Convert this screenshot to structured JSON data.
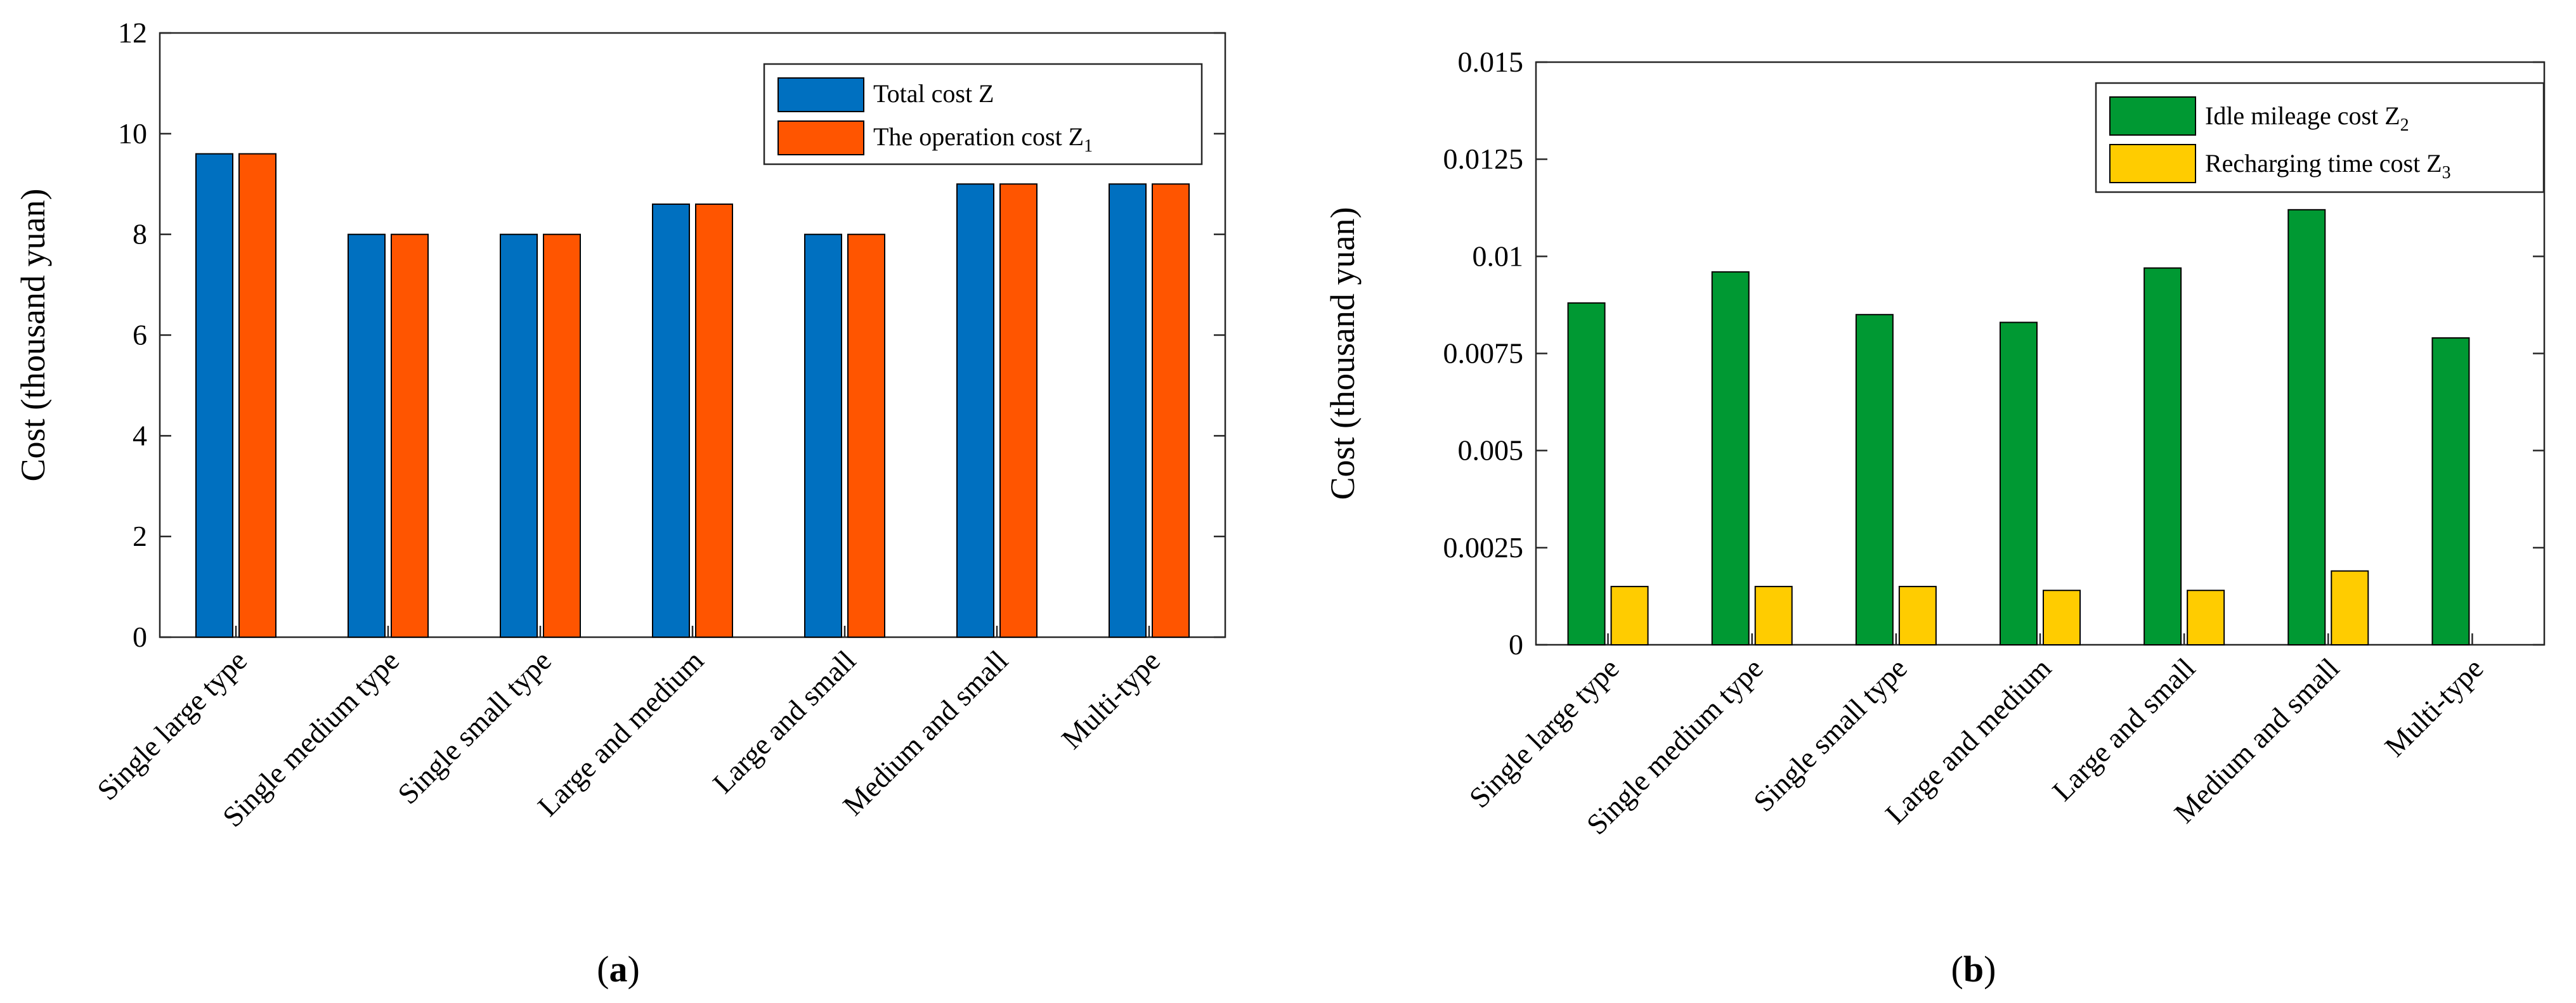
{
  "colors": {
    "blue": "#0070C0",
    "orange": "#FF5500",
    "green": "#009933",
    "yellow": "#FFCC00"
  },
  "chart_data": [
    {
      "type": "bar",
      "panel_label": "(a)",
      "panel_letter": "a",
      "categories": [
        "Single large type",
        "Single medium type",
        "Single small type",
        "Large and medium",
        "Large and small",
        "Medium and small",
        "Multi-type"
      ],
      "series": [
        {
          "name": "Total cost Z",
          "name_text": "Total cost Z",
          "name_sub": "",
          "color": "#0070C0",
          "values": [
            9.6,
            8.0,
            8.0,
            8.6,
            8.0,
            9.0,
            9.0
          ]
        },
        {
          "name": "The operation cost Z1",
          "name_text": "The operation cost  Z",
          "name_sub": "1",
          "color": "#FF5500",
          "values": [
            9.6,
            8.0,
            8.0,
            8.6,
            8.0,
            9.0,
            9.0
          ]
        }
      ],
      "xlabel": "",
      "ylabel": "Cost (thousand yuan)",
      "ylim": [
        0,
        12
      ],
      "yticks": [
        0,
        2,
        4,
        6,
        8,
        10,
        12
      ],
      "ytick_labels": [
        "0",
        "2",
        "4",
        "6",
        "8",
        "10",
        "12"
      ],
      "legend_position": "top-right",
      "grid": false
    },
    {
      "type": "bar",
      "panel_label": "(b)",
      "panel_letter": "b",
      "categories": [
        "Single large type",
        "Single medium type",
        "Single small type",
        "Large and medium",
        "Large and small",
        "Medium and small",
        "Multi-type"
      ],
      "series": [
        {
          "name": "Idle mileage cost Z2",
          "name_text": "Idle mileage cost Z",
          "name_sub": "2",
          "color": "#009933",
          "values": [
            0.0088,
            0.0096,
            0.0085,
            0.0083,
            0.0097,
            0.0112,
            0.0079
          ]
        },
        {
          "name": "Recharging time cost Z3",
          "name_text": "Recharging time cost Z",
          "name_sub": "3",
          "color": "#FFCC00",
          "values": [
            0.0015,
            0.0015,
            0.0015,
            0.0014,
            0.0014,
            0.0019,
            0
          ]
        }
      ],
      "xlabel": "",
      "ylabel": "Cost (thousand yuan)",
      "ylim": [
        0,
        0.015
      ],
      "yticks": [
        0,
        0.0025,
        0.005,
        0.0075,
        0.01,
        0.0125,
        0.015
      ],
      "ytick_labels": [
        "0",
        "0.0025",
        "0.005",
        "0.0075",
        "0.01",
        "0.0125",
        "0.015"
      ],
      "legend_position": "top-right",
      "grid": false
    }
  ]
}
